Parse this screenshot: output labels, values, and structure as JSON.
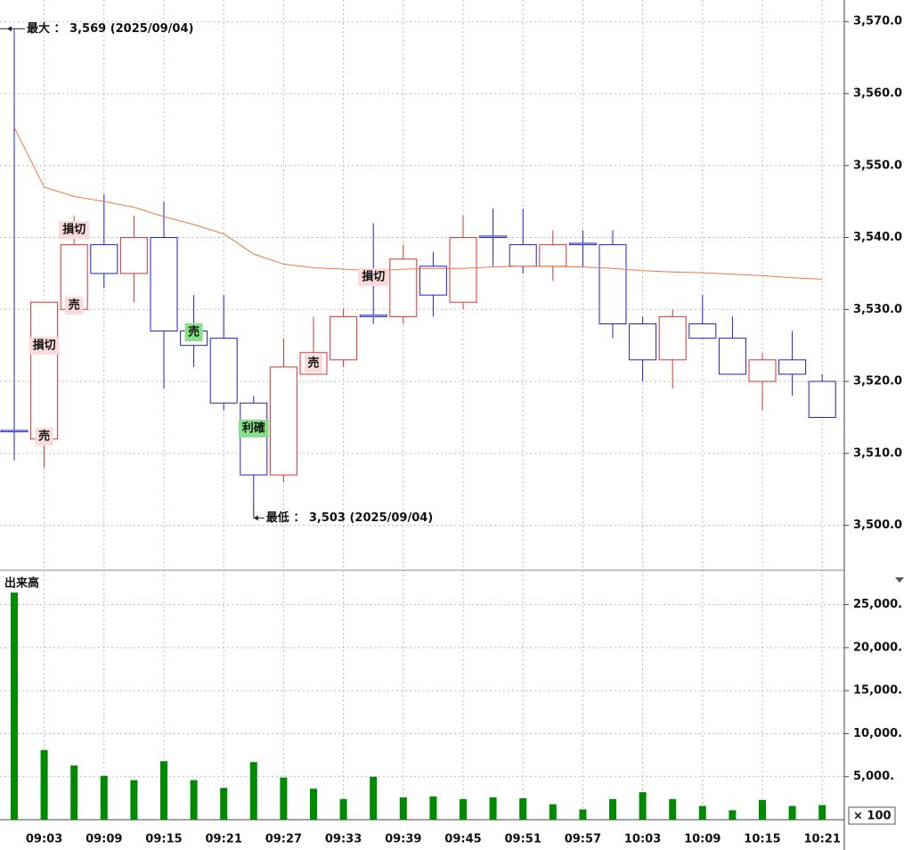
{
  "chart_data": [
    {
      "type": "candlestick",
      "categories": [
        null,
        "09:03",
        null,
        "09:09",
        null,
        "09:15",
        null,
        "09:21",
        null,
        "09:27",
        null,
        "09:33",
        null,
        "09:39",
        null,
        "09:45",
        null,
        "09:51",
        null,
        "09:57",
        null,
        "10:03",
        null,
        "10:09",
        null,
        "10:15",
        null,
        "10:21"
      ],
      "open": [
        3513.2,
        3512,
        3530,
        3539,
        3535,
        3540,
        3527,
        3526,
        3517,
        3507,
        3521,
        3523,
        3529.2,
        3529,
        3536,
        3531,
        3540.2,
        3539,
        3536,
        3539.2,
        3539,
        3528,
        3523,
        3528,
        3526,
        3520,
        3523,
        3520
      ],
      "high": [
        3569,
        3531,
        3543,
        3546,
        3543,
        3545,
        3532,
        3532,
        3518,
        3526,
        3529,
        3530,
        3542,
        3539,
        3538,
        3543,
        3544,
        3544,
        3541,
        3541,
        3541,
        3529,
        3530,
        3532,
        3529,
        3524,
        3527,
        3521
      ],
      "low": [
        3509,
        3508,
        3530,
        3533,
        3531,
        3519,
        3522,
        3516,
        3503,
        3506,
        3521,
        3522,
        3528,
        3528,
        3529,
        3530,
        3536,
        3535,
        3534,
        3536,
        3526,
        3520,
        3519,
        3526,
        3521,
        3516,
        3518,
        3515
      ],
      "close": [
        3513,
        3531,
        3539,
        3535,
        3540,
        3527,
        3525,
        3517,
        3507,
        3522,
        3524,
        3529,
        3529,
        3537,
        3532,
        3540,
        3540,
        3536,
        3539,
        3539,
        3528,
        3523,
        3529,
        3526,
        3521,
        3523,
        3521,
        3515
      ],
      "ma": [
        3555.3,
        3547.0,
        3545.7,
        3545.0,
        3544.2,
        3542.9,
        3541.8,
        3540.5,
        3537.7,
        3536.3,
        3535.8,
        3535.6,
        3535.4,
        3535.6,
        3535.7,
        3535.7,
        3535.9,
        3536.0,
        3536.0,
        3535.9,
        3535.7,
        3535.4,
        3535.2,
        3535.1,
        3534.9,
        3534.7,
        3534.4,
        3534.2
      ],
      "up_color": "#e03030",
      "down_color": "#2020d0",
      "ma_color": "#f07840",
      "ylim": [
        3495,
        3573
      ],
      "yticks": [
        {
          "value": 3500,
          "label": "3,500.0"
        },
        {
          "value": 3510,
          "label": "3,510.0"
        },
        {
          "value": 3520,
          "label": "3,520.0"
        },
        {
          "value": 3530,
          "label": "3,530.0"
        },
        {
          "value": 3540,
          "label": "3,540.0"
        },
        {
          "value": 3550,
          "label": "3,550.0"
        },
        {
          "value": 3560,
          "label": "3,560.0"
        },
        {
          "value": 3570,
          "label": "3,570.0"
        }
      ],
      "grid": true,
      "max_label": "最大 ： 3,569 (2025/09/04)",
      "min_label": "最低 ： 3,503 (2025/09/04)",
      "annotations": [
        {
          "text": "損切",
          "color": "#fadada"
        },
        {
          "text": "売",
          "color": "#fadada"
        },
        {
          "text": "損切",
          "color": "#fadada"
        },
        {
          "text": "売",
          "color": "#fadada"
        },
        {
          "text": "売",
          "color": "#88e088"
        },
        {
          "text": "利確",
          "color": "#88e088"
        },
        {
          "text": "売",
          "color": "#fadada"
        },
        {
          "text": "損切",
          "color": "#fadada"
        }
      ]
    },
    {
      "type": "bar",
      "title": "出来高",
      "unit_label": "× 100",
      "values": [
        26400,
        8100,
        6300,
        5100,
        4600,
        6800,
        4600,
        3700,
        6700,
        4900,
        3600,
        2400,
        5000,
        2600,
        2700,
        2400,
        2600,
        2500,
        1800,
        1200,
        2400,
        3200,
        2400,
        1600,
        1100,
        2300,
        1600,
        1700
      ],
      "color": "#008a00",
      "ylim": [
        0,
        29000
      ],
      "yticks": [
        {
          "value": 5000,
          "label": "5,000."
        },
        {
          "value": 10000,
          "label": "10,000."
        },
        {
          "value": 15000,
          "label": "15,000."
        },
        {
          "value": 20000,
          "label": "20,000."
        },
        {
          "value": 25000,
          "label": "25,000."
        }
      ],
      "grid": true
    }
  ]
}
